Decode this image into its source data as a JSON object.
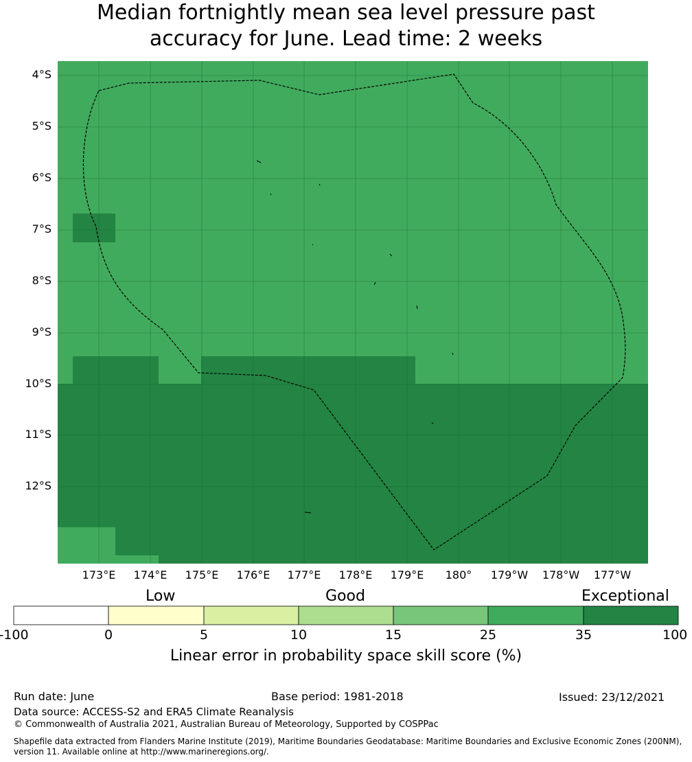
{
  "title_line1": "Median fortnightly mean sea level pressure past",
  "title_line2": "accuracy for June. Lead time: 2 weeks",
  "colors": {
    "c25_35": "#41ab5d",
    "c35_100": "#238443",
    "boundary": "#000000"
  },
  "lat_labels": [
    "4°S",
    "5°S",
    "6°S",
    "7°S",
    "8°S",
    "9°S",
    "10°S",
    "11°S",
    "12°S"
  ],
  "lon_labels": [
    "173°E",
    "174°E",
    "175°E",
    "176°E",
    "177°E",
    "178°E",
    "179°E",
    "180°",
    "179°W",
    "178°W",
    "177°W"
  ],
  "colorbar": {
    "categories": [
      "Low",
      "Good",
      "Exceptional"
    ],
    "ticks": [
      "-100",
      "0",
      "5",
      "10",
      "15",
      "25",
      "35",
      "100"
    ],
    "colors": [
      "#ffffff",
      "#ffffcc",
      "#d9f0a3",
      "#addd8e",
      "#78c679",
      "#41ab5d",
      "#238443"
    ],
    "label": "Linear error in probability space skill score (%)"
  },
  "footer": {
    "run_date": "Run date: June",
    "base_period": "Base period: 1981-2018",
    "issued": "Issued: 23/12/2021",
    "data_source": "Data source: ACCESS-S2 and ERA5 Climate Reanalysis",
    "copyright": "© Commonwealth of Australia 2021, Australian Bureau of Meteorology, Supported by COSPPac",
    "shapefile_line1": "Shapefile data extracted from Flanders Marine Institute (2019), Maritime Boundaries Geodatabase: Maritime Boundaries and Exclusive Economic Zones (200NM),",
    "shapefile_line2": "version 11. Available online at http://www.marineregions.org/."
  }
}
